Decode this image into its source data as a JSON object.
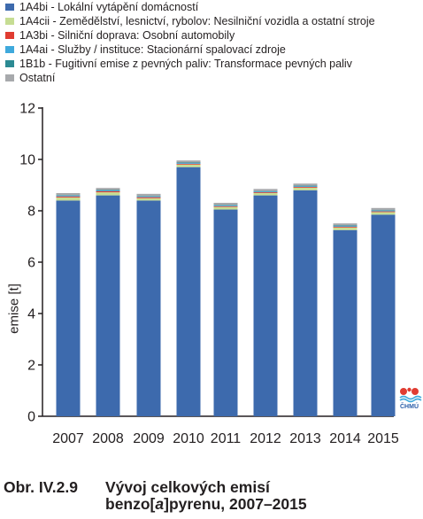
{
  "legend": [
    {
      "label": "1A4bi - Lokální vytápění domácností",
      "color": "#3d6aad"
    },
    {
      "label": "1A4cii - Zemědělství, lesnictví, rybolov: Nesilniční vozidla a ostatní stroje",
      "color": "#c6dd93"
    },
    {
      "label": "1A3bi - Silniční doprava: Osobní automobily",
      "color": "#e03c31"
    },
    {
      "label": "1A4ai - Služby / instituce: Stacionární spalovací zdroje",
      "color": "#3fa9dc"
    },
    {
      "label": "1B1b - Fugitivní emise z pevných paliv: Transformace pevných paliv",
      "color": "#2c8a93"
    },
    {
      "label": "Ostatní",
      "color": "#a7a9ac"
    }
  ],
  "chart_data": {
    "type": "bar",
    "stacked": true,
    "categories": [
      "2007",
      "2008",
      "2009",
      "2010",
      "2011",
      "2012",
      "2013",
      "2014",
      "2015"
    ],
    "series": [
      {
        "name": "1A4bi - Lokální vytápění domácností",
        "color": "#3d6aad",
        "values": [
          8.4,
          8.6,
          8.4,
          9.7,
          8.05,
          8.6,
          8.8,
          7.25,
          7.85
        ]
      },
      {
        "name": "1A4cii - Zemědělství, lesnictví, rybolov: Nesilniční vozidla a ostatní stroje",
        "color": "#c6dd93",
        "values": [
          0.12,
          0.12,
          0.09,
          0.1,
          0.1,
          0.09,
          0.1,
          0.1,
          0.1
        ]
      },
      {
        "name": "1A3bi - Silniční doprava: Osobní automobily",
        "color": "#e03c31",
        "values": [
          0.04,
          0.04,
          0.04,
          0.03,
          0.03,
          0.03,
          0.03,
          0.03,
          0.03
        ]
      },
      {
        "name": "1A4ai - Služby / instituce: Stacionární spalovací zdroje",
        "color": "#3fa9dc",
        "values": [
          0.03,
          0.03,
          0.03,
          0.03,
          0.03,
          0.03,
          0.03,
          0.03,
          0.03
        ]
      },
      {
        "name": "1B1b - Fugitivní emise z pevných paliv: Transformace pevných paliv",
        "color": "#2c8a93",
        "values": [
          0.02,
          0.02,
          0.02,
          0.02,
          0.02,
          0.02,
          0.02,
          0.02,
          0.02
        ]
      },
      {
        "name": "Ostatní",
        "color": "#a7a9ac",
        "values": [
          0.08,
          0.08,
          0.08,
          0.08,
          0.08,
          0.08,
          0.08,
          0.08,
          0.08
        ]
      }
    ],
    "ylabel": "emise [t]",
    "xlabel": "",
    "ylim": [
      0,
      12
    ],
    "yticks": [
      0,
      2,
      4,
      6,
      8,
      10,
      12
    ],
    "legend_position": "top"
  },
  "logo": {
    "text": "ČHMÚ"
  },
  "caption": {
    "number": "Obr. IV.2.9",
    "line1": "Vývoj celkových emisí",
    "line2_pre": "benzo[",
    "line2_italic": "a",
    "line2_post": "]pyrenu, 2007–2015"
  }
}
